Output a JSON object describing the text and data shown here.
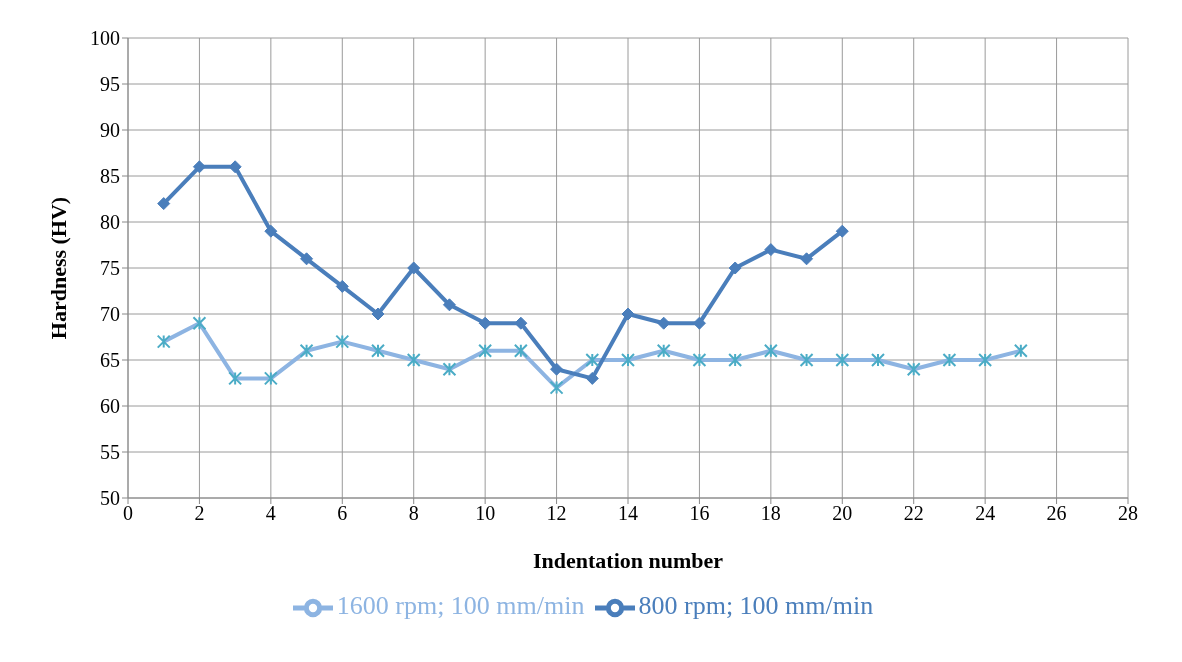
{
  "chart_data": {
    "type": "line",
    "xlabel": "Indentation number",
    "ylabel": "Hardness (HV)",
    "xlim": [
      0,
      28
    ],
    "xticks": [
      0,
      2,
      4,
      6,
      8,
      10,
      12,
      14,
      16,
      18,
      20,
      22,
      24,
      26,
      28
    ],
    "ylim": [
      50,
      100
    ],
    "yticks": [
      50,
      55,
      60,
      65,
      70,
      75,
      80,
      85,
      90,
      95,
      100
    ],
    "grid": true,
    "legend": "bottom",
    "series": [
      {
        "name": "1600 rpm; 100 mm/min",
        "color": "#8db4e2",
        "marker": "cross",
        "x": [
          1,
          2,
          3,
          4,
          5,
          6,
          7,
          8,
          9,
          10,
          11,
          12,
          13,
          14,
          15,
          16,
          17,
          18,
          19,
          20,
          21,
          22,
          23,
          24,
          25
        ],
        "values": [
          67,
          69,
          63,
          63,
          66,
          67,
          66,
          65,
          64,
          66,
          66,
          62,
          65,
          65,
          66,
          65,
          65,
          66,
          65,
          65,
          65,
          64,
          65,
          65,
          66
        ]
      },
      {
        "name": "800 rpm; 100 mm/min",
        "color": "#4a7ebb",
        "marker": "diamond",
        "x": [
          1,
          2,
          3,
          4,
          5,
          6,
          7,
          8,
          9,
          10,
          11,
          12,
          13,
          14,
          15,
          16,
          17,
          18,
          19,
          20
        ],
        "values": [
          82,
          86,
          86,
          79,
          76,
          73,
          70,
          75,
          71,
          69,
          69,
          64,
          63,
          70,
          69,
          69,
          75,
          77,
          76,
          79
        ]
      }
    ]
  }
}
